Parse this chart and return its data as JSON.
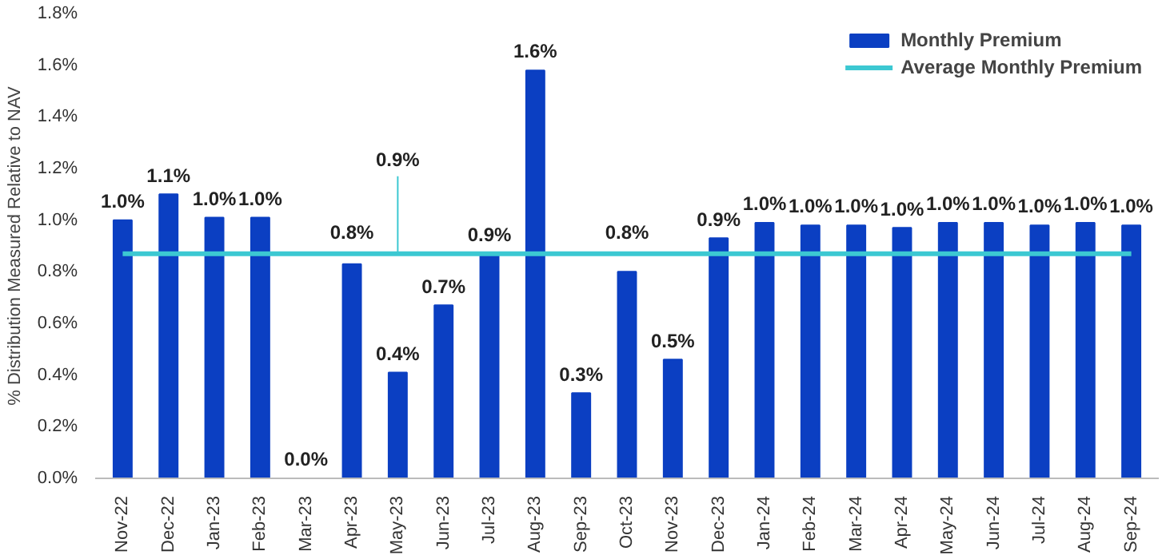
{
  "chart_data": {
    "type": "bar",
    "ylabel": "% Distribution Measured Relative to NAV",
    "categories": [
      "Nov-22",
      "Dec-22",
      "Jan-23",
      "Feb-23",
      "Mar-23",
      "Apr-23",
      "May-23",
      "Jun-23",
      "Jul-23",
      "Aug-23",
      "Sep-23",
      "Oct-23",
      "Nov-23",
      "Dec-23",
      "Jan-24",
      "Feb-24",
      "Mar-24",
      "Apr-24",
      "May-24",
      "Jun-24",
      "Jul-24",
      "Aug-24",
      "Sep-24"
    ],
    "series": [
      {
        "name": "Monthly Premium",
        "color": "#0b3fc2",
        "values": [
          1.0,
          1.1,
          1.01,
          1.01,
          0.0,
          0.83,
          0.41,
          0.67,
          0.87,
          1.58,
          0.33,
          0.8,
          0.46,
          0.93,
          0.99,
          0.98,
          0.98,
          0.97,
          0.99,
          0.99,
          0.98,
          0.99,
          0.98
        ],
        "value_labels": [
          "1.0%",
          "1.1%",
          "1.0%",
          "1.0%",
          "0.0%",
          "0.8%",
          "0.4%",
          "0.7%",
          "0.9%",
          "1.6%",
          "0.3%",
          "0.8%",
          "0.5%",
          "0.9%",
          "1.0%",
          "1.0%",
          "1.0%",
          "1.0%",
          "1.0%",
          "1.0%",
          "1.0%",
          "1.0%",
          "1.0%"
        ]
      },
      {
        "name": "Average Monthly Premium",
        "type": "line",
        "color": "#3cc8d2",
        "values": [
          0.87,
          0.87,
          0.87,
          0.87,
          0.87,
          0.87,
          0.87,
          0.87,
          0.87,
          0.87,
          0.87,
          0.87,
          0.87,
          0.87,
          0.87,
          0.87,
          0.87,
          0.87,
          0.87,
          0.87,
          0.87,
          0.87,
          0.87
        ]
      }
    ],
    "annotations": [
      {
        "text": "0.9%",
        "x": "May-23",
        "y": 0.87
      }
    ],
    "ylim": [
      0,
      1.8
    ],
    "yticks": [
      {
        "value": 0,
        "label": "0.0%"
      },
      {
        "value": 0.2,
        "label": "0.2%"
      },
      {
        "value": 0.4,
        "label": "0.4%"
      },
      {
        "value": 0.6,
        "label": "0.6%"
      },
      {
        "value": 0.8,
        "label": "0.8%"
      },
      {
        "value": 1.0,
        "label": "1.0%"
      },
      {
        "value": 1.2,
        "label": "1.2%"
      },
      {
        "value": 1.4,
        "label": "1.4%"
      },
      {
        "value": 1.6,
        "label": "1.6%"
      },
      {
        "value": 1.8,
        "label": "1.8%"
      }
    ],
    "legend": "top right",
    "grid": false
  }
}
